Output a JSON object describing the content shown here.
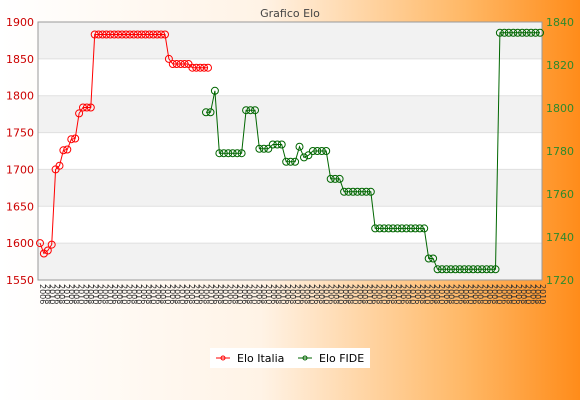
{
  "chart_data": {
    "type": "line",
    "title": "Grafico Elo",
    "xlabel": "",
    "ylabel_left": "",
    "ylabel_right": "",
    "grid": true,
    "legend_position": "bottom",
    "y_left_ticks": [
      1550,
      1600,
      1650,
      1700,
      1750,
      1800,
      1850,
      1900
    ],
    "y_right_ticks": [
      1720,
      1740,
      1760,
      1780,
      1800,
      1820,
      1840
    ],
    "ylim_left": [
      1550,
      1900
    ],
    "ylim_right": [
      1720,
      1840
    ],
    "colors": {
      "left_axis": "#cc0000",
      "right_axis": "#2d8a2d",
      "title": "#444444"
    },
    "series": [
      {
        "name": "Elo Italia",
        "axis": "left",
        "color": "#ff0000",
        "values": [
          1600,
          1586,
          1590,
          1598,
          1700,
          1705,
          1726,
          1727,
          1741,
          1742,
          1776,
          1784,
          1784,
          1784,
          1883,
          1883,
          1883,
          1883,
          1883,
          1883,
          1883,
          1883,
          1883,
          1883,
          1883,
          1883,
          1883,
          1883,
          1883,
          1883,
          1883,
          1883,
          1883,
          1850,
          1843,
          1843,
          1843,
          1843,
          1843,
          1838,
          1838,
          1838,
          1838,
          1838
        ]
      },
      {
        "name": "Elo FIDE",
        "axis": "right",
        "color": "#006600",
        "values": [
          1798,
          1798,
          1808,
          1779,
          1779,
          1779,
          1779,
          1779,
          1779,
          1799,
          1799,
          1799,
          1781,
          1781,
          1781,
          1783,
          1783,
          1783,
          1775,
          1775,
          1775,
          1782,
          1777,
          1778,
          1780,
          1780,
          1780,
          1780,
          1767,
          1767,
          1767,
          1761,
          1761,
          1761,
          1761,
          1761,
          1761,
          1761,
          1744,
          1744,
          1744,
          1744,
          1744,
          1744,
          1744,
          1744,
          1744,
          1744,
          1744,
          1744,
          1730,
          1730,
          1725,
          1725,
          1725,
          1725,
          1725,
          1725,
          1725,
          1725,
          1725,
          1725,
          1725,
          1725,
          1725,
          1725,
          1835,
          1835,
          1835,
          1835,
          1835,
          1835,
          1835,
          1835,
          1835,
          1835
        ]
      }
    ],
    "x_tick_labels": "dense unreadable date labels"
  }
}
